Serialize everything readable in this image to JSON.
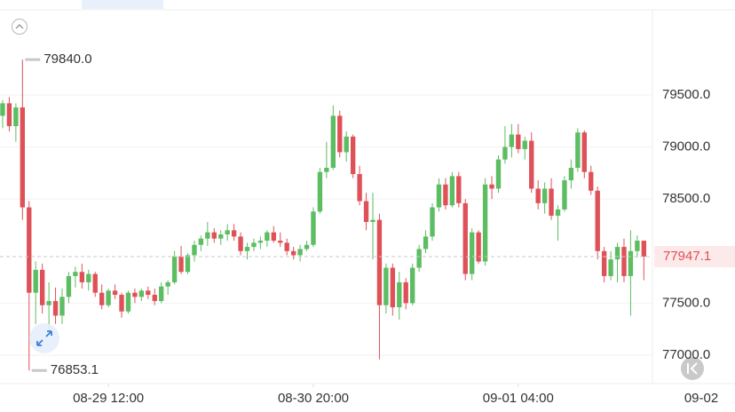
{
  "chart_data": {
    "type": "candlestick",
    "up_color": "#5cbd62",
    "down_color": "#df5158",
    "ylim": [
      76727,
      80310
    ],
    "yticks": [
      {
        "value": 77000,
        "label": "77000.0"
      },
      {
        "value": 77500,
        "label": "77500.0"
      },
      {
        "value": 78500,
        "label": "78500.0"
      },
      {
        "value": 79000,
        "label": "79000.0"
      },
      {
        "value": 79500,
        "label": "79500.0"
      }
    ],
    "xlim": [
      -0.4,
      98.3
    ],
    "xticks": [
      {
        "value": 16,
        "label": "08-29 12:00"
      },
      {
        "value": 47,
        "label": "08-30 20:00"
      },
      {
        "value": 78,
        "label": "09-01 04:00"
      },
      {
        "value": 106,
        "label": "09-02"
      }
    ],
    "grid": true,
    "max_marker": {
      "index": 3,
      "value": 79840,
      "label": "79840.0"
    },
    "min_marker": {
      "index": 4,
      "value": 76853.1,
      "label": "76853.1"
    },
    "last_price": {
      "value": 77947.1,
      "label": "77947.1"
    },
    "candles": [
      [
        79300,
        79450,
        79180,
        79420
      ],
      [
        79420,
        79480,
        79150,
        79200
      ],
      [
        79200,
        79420,
        79050,
        79380
      ],
      [
        79380,
        79840,
        78300,
        78420
      ],
      [
        78420,
        78480,
        76853.1,
        77600
      ],
      [
        77600,
        77900,
        77300,
        77820
      ],
      [
        77820,
        77880,
        77400,
        77480
      ],
      [
        77480,
        77700,
        77250,
        77520
      ],
      [
        77520,
        77650,
        77300,
        77380
      ],
      [
        77380,
        77640,
        77300,
        77560
      ],
      [
        77560,
        77800,
        77500,
        77760
      ],
      [
        77760,
        77850,
        77650,
        77800
      ],
      [
        77800,
        77880,
        77640,
        77700
      ],
      [
        77700,
        77820,
        77620,
        77780
      ],
      [
        77780,
        77800,
        77560,
        77600
      ],
      [
        77600,
        77680,
        77440,
        77480
      ],
      [
        77480,
        77640,
        77460,
        77620
      ],
      [
        77620,
        77680,
        77540,
        77580
      ],
      [
        77580,
        77600,
        77360,
        77420
      ],
      [
        77420,
        77620,
        77400,
        77600
      ],
      [
        77600,
        77640,
        77500,
        77560
      ],
      [
        77560,
        77640,
        77520,
        77620
      ],
      [
        77620,
        77660,
        77540,
        77580
      ],
      [
        77580,
        77640,
        77480,
        77520
      ],
      [
        77520,
        77700,
        77500,
        77660
      ],
      [
        77660,
        77720,
        77580,
        77700
      ],
      [
        77700,
        78000,
        77680,
        77950
      ],
      [
        77950,
        78050,
        77780,
        77800
      ],
      [
        77800,
        77980,
        77780,
        77960
      ],
      [
        77960,
        78100,
        77900,
        78060
      ],
      [
        78060,
        78150,
        78000,
        78120
      ],
      [
        78120,
        78280,
        78050,
        78180
      ],
      [
        78180,
        78220,
        78080,
        78120
      ],
      [
        78120,
        78200,
        78060,
        78160
      ],
      [
        78160,
        78260,
        78100,
        78200
      ],
      [
        78200,
        78260,
        78100,
        78140
      ],
      [
        78140,
        78180,
        77960,
        78000
      ],
      [
        78000,
        78080,
        77920,
        78040
      ],
      [
        78040,
        78120,
        78000,
        78080
      ],
      [
        78080,
        78140,
        78020,
        78100
      ],
      [
        78100,
        78200,
        78040,
        78180
      ],
      [
        78180,
        78240,
        78080,
        78100
      ],
      [
        78100,
        78180,
        78040,
        78080
      ],
      [
        78080,
        78120,
        77960,
        78000
      ],
      [
        78000,
        78040,
        77920,
        77960
      ],
      [
        77960,
        78060,
        77900,
        78020
      ],
      [
        78020,
        78100,
        78000,
        78060
      ],
      [
        78060,
        78420,
        78040,
        78380
      ],
      [
        78380,
        78800,
        78360,
        78760
      ],
      [
        78760,
        79050,
        78700,
        78800
      ],
      [
        78800,
        79400,
        78780,
        79300
      ],
      [
        79300,
        79350,
        78900,
        78950
      ],
      [
        78950,
        79150,
        78860,
        79100
      ],
      [
        79100,
        79120,
        78700,
        78740
      ],
      [
        78740,
        78820,
        78440,
        78480
      ],
      [
        78480,
        78560,
        78200,
        78280
      ],
      [
        78280,
        78560,
        77920,
        78300
      ],
      [
        78300,
        78360,
        76960,
        77480
      ],
      [
        77480,
        77880,
        77400,
        77840
      ],
      [
        77840,
        77880,
        77380,
        77460
      ],
      [
        77460,
        77800,
        77340,
        77700
      ],
      [
        77700,
        77740,
        77440,
        77500
      ],
      [
        77500,
        77880,
        77480,
        77840
      ],
      [
        77840,
        78060,
        77800,
        78020
      ],
      [
        78020,
        78200,
        77980,
        78140
      ],
      [
        78140,
        78460,
        78100,
        78420
      ],
      [
        78420,
        78700,
        78380,
        78640
      ],
      [
        78640,
        78700,
        78400,
        78440
      ],
      [
        78440,
        78760,
        78420,
        78720
      ],
      [
        78720,
        78760,
        78420,
        78460
      ],
      [
        78460,
        78500,
        77720,
        77780
      ],
      [
        77780,
        78220,
        77720,
        78180
      ],
      [
        78180,
        78200,
        77880,
        77900
      ],
      [
        77900,
        78700,
        77860,
        78640
      ],
      [
        78640,
        78720,
        78500,
        78600
      ],
      [
        78600,
        78920,
        78560,
        78880
      ],
      [
        78880,
        79200,
        78840,
        79000
      ],
      [
        79000,
        79220,
        78900,
        79120
      ],
      [
        79120,
        79220,
        78940,
        78980
      ],
      [
        78980,
        79100,
        78880,
        79060
      ],
      [
        79060,
        79140,
        78560,
        78600
      ],
      [
        78600,
        78680,
        78400,
        78460
      ],
      [
        78460,
        78660,
        78360,
        78600
      ],
      [
        78600,
        78700,
        78300,
        78340
      ],
      [
        78340,
        78440,
        78100,
        78400
      ],
      [
        78400,
        78720,
        78380,
        78680
      ],
      [
        78680,
        78880,
        78600,
        78800
      ],
      [
        78800,
        79180,
        78760,
        79140
      ],
      [
        79140,
        79160,
        78700,
        78760
      ],
      [
        78760,
        78820,
        78540,
        78580
      ],
      [
        78580,
        78620,
        77920,
        78000
      ],
      [
        78000,
        78040,
        77700,
        77760
      ],
      [
        77760,
        78000,
        77720,
        77920
      ],
      [
        77920,
        78080,
        77700,
        78040
      ],
      [
        78040,
        78120,
        77700,
        77760
      ],
      [
        77760,
        78200,
        77380,
        78000
      ],
      [
        78000,
        78150,
        77940,
        78100
      ],
      [
        78100,
        78100,
        77720,
        77947.1
      ]
    ]
  }
}
